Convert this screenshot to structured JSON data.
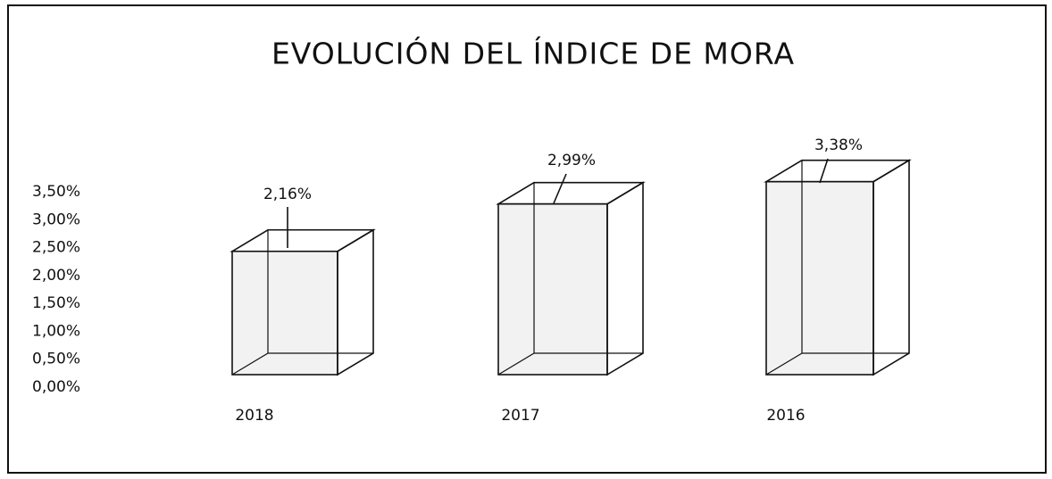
{
  "chart_data": {
    "type": "bar3d",
    "title": "EVOLUCIÓN DEL ÍNDICE DE MORA",
    "categories": [
      "2018",
      "2017",
      "2016"
    ],
    "values": [
      2.16,
      2.99,
      3.38
    ],
    "value_labels": [
      "2,16%",
      "2,99%",
      "3,38%"
    ],
    "ylim": [
      0,
      3.5
    ],
    "yticks": [
      {
        "value": 0,
        "label": "0,00%"
      },
      {
        "value": 0.5,
        "label": "0,50%"
      },
      {
        "value": 1,
        "label": "1,00%"
      },
      {
        "value": 1.5,
        "label": "1,50%"
      },
      {
        "value": 2,
        "label": "2,00%"
      },
      {
        "value": 2.5,
        "label": "2,50%"
      },
      {
        "value": 3,
        "label": "3,00%"
      },
      {
        "value": 3.5,
        "label": "3,50%"
      }
    ],
    "color": "#d9d9d9"
  }
}
